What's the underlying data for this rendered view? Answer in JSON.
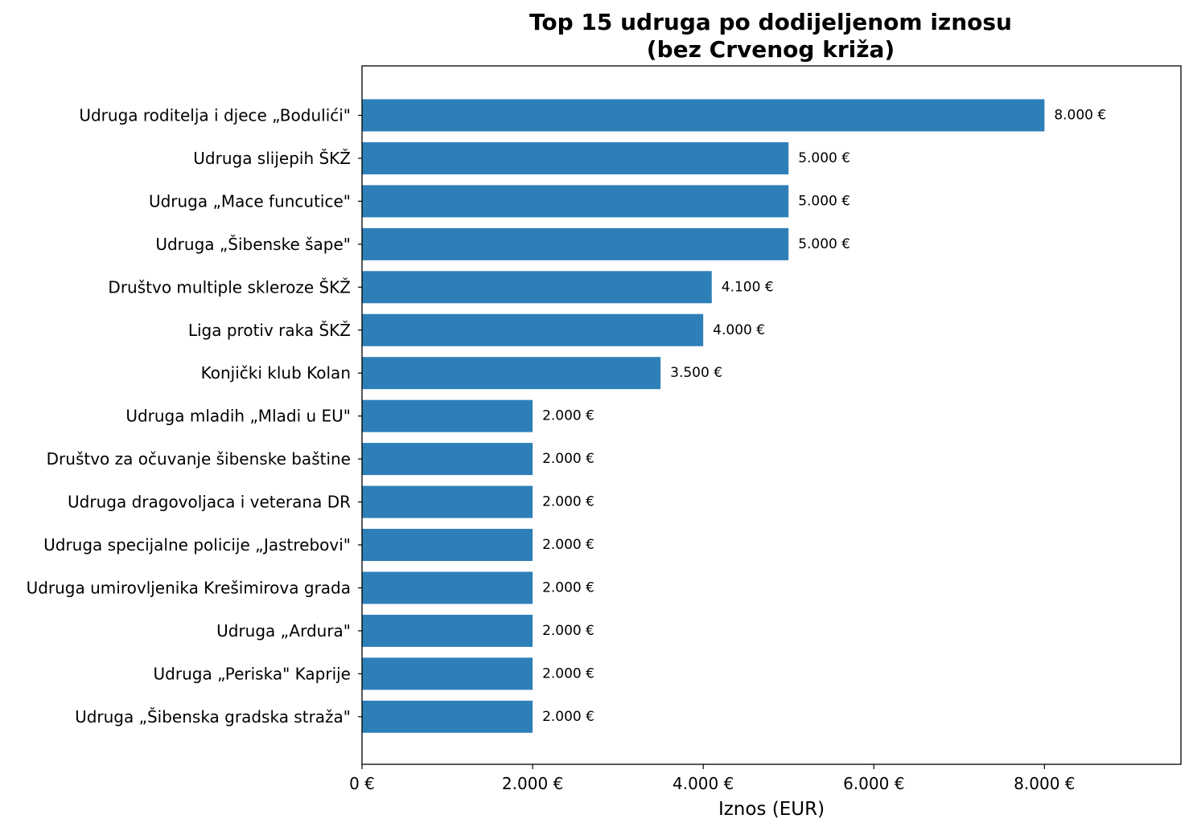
{
  "chart_data": {
    "type": "bar",
    "orientation": "horizontal",
    "title_lines": [
      "Top 15 udruga po dodijeljenom iznosu",
      "(bez Crvenog križa)"
    ],
    "xlabel": "Iznos (EUR)",
    "ylabel": "",
    "xlim": [
      0,
      9600
    ],
    "grid": false,
    "bar_color": "#2e7fb8",
    "categories": [
      "Udruga roditelja i djece „Bodulići\"",
      "Udruga slijepih ŠKŽ",
      "Udruga „Mace funcutice\"",
      "Udruga „Šibenske šape\"",
      "Društvo multiple skleroze ŠKŽ",
      "Liga protiv raka ŠKŽ",
      "Konjički klub Kolan",
      "Udruga mladih „Mladi u EU\"",
      "Društvo za očuvanje šibenske baštine",
      "Udruga dragovoljaca i veterana DR",
      "Udruga specijalne policije „Jastrebovi\"",
      "Udruga umirovljenika Krešimirova grada",
      "Udruga „Ardura\"",
      "Udruga „Periska\" Kaprije",
      "Udruga „Šibenska gradska straža\""
    ],
    "values": [
      8000,
      5000,
      5000,
      5000,
      4100,
      4000,
      3500,
      2000,
      2000,
      2000,
      2000,
      2000,
      2000,
      2000,
      2000
    ],
    "value_labels": [
      "8.000 €",
      "5.000 €",
      "5.000 €",
      "5.000 €",
      "4.100 €",
      "4.000 €",
      "3.500 €",
      "2.000 €",
      "2.000 €",
      "2.000 €",
      "2.000 €",
      "2.000 €",
      "2.000 €",
      "2.000 €",
      "2.000 €"
    ],
    "x_ticks": [
      0,
      2000,
      4000,
      6000,
      8000
    ],
    "x_tick_labels": [
      "0 €",
      "2.000 €",
      "4.000 €",
      "6.000 €",
      "8.000 €"
    ]
  }
}
